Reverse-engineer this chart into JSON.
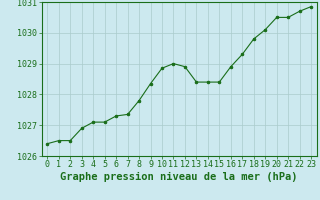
{
  "x": [
    0,
    1,
    2,
    3,
    4,
    5,
    6,
    7,
    8,
    9,
    10,
    11,
    12,
    13,
    14,
    15,
    16,
    17,
    18,
    19,
    20,
    21,
    22,
    23
  ],
  "y": [
    1026.4,
    1026.5,
    1026.5,
    1026.9,
    1027.1,
    1027.1,
    1027.3,
    1027.35,
    1027.8,
    1028.35,
    1028.85,
    1029.0,
    1028.9,
    1028.4,
    1028.4,
    1028.4,
    1028.9,
    1029.3,
    1029.8,
    1030.1,
    1030.5,
    1030.5,
    1030.7,
    1030.85
  ],
  "line_color": "#1a6e1a",
  "marker_color": "#1a6e1a",
  "bg_color": "#cce9ef",
  "grid_color": "#aacccc",
  "xlabel": "Graphe pression niveau de la mer (hPa)",
  "ylim": [
    1026.0,
    1031.0
  ],
  "xlim_min": -0.5,
  "xlim_max": 23.5,
  "yticks": [
    1026,
    1027,
    1028,
    1029,
    1030,
    1031
  ],
  "xticks": [
    0,
    1,
    2,
    3,
    4,
    5,
    6,
    7,
    8,
    9,
    10,
    11,
    12,
    13,
    14,
    15,
    16,
    17,
    18,
    19,
    20,
    21,
    22,
    23
  ],
  "tick_label_color": "#1a6e1a",
  "xlabel_color": "#1a6e1a",
  "xlabel_fontsize": 7.5,
  "tick_fontsize": 6.0,
  "border_color": "#1a6e1a",
  "linewidth": 0.8,
  "markersize": 3.5
}
